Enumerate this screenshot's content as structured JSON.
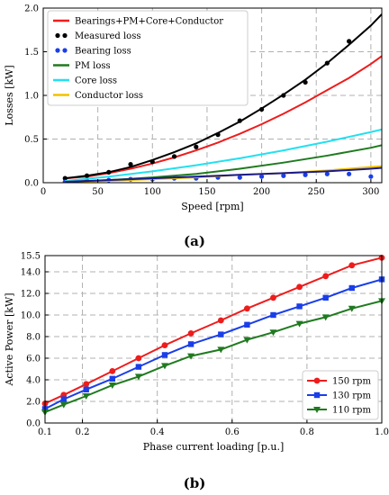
{
  "chart_data": [
    {
      "type": "line",
      "panel_label": "(a)",
      "xlabel": "Speed [rpm]",
      "ylabel": "Losses [kW]",
      "xlim": [
        0,
        310
      ],
      "ylim": [
        0,
        2.0
      ],
      "xticks": [
        0,
        50,
        100,
        150,
        200,
        250,
        300
      ],
      "xtick_labels": [
        "0",
        "50",
        "100",
        "150",
        "200",
        "250",
        "300"
      ],
      "yticks": [
        0,
        0.5,
        1.0,
        1.5,
        2.0
      ],
      "ytick_labels": [
        "0.0",
        "0.5",
        "1.0",
        "1.5",
        "2.0"
      ],
      "grid": true,
      "legend_position": "top-left",
      "series": [
        {
          "name": "Bearings+PM+Core+Conductor",
          "kind": "line",
          "color": "#ee1c1c",
          "x": [
            20,
            40,
            60,
            80,
            100,
            120,
            140,
            160,
            180,
            200,
            220,
            240,
            260,
            280,
            300,
            310
          ],
          "y": [
            0.05,
            0.07,
            0.11,
            0.16,
            0.22,
            0.29,
            0.37,
            0.46,
            0.56,
            0.67,
            0.79,
            0.92,
            1.06,
            1.2,
            1.36,
            1.45
          ]
        },
        {
          "name": "Measured loss",
          "kind": "scatter",
          "color": "#000000",
          "x": [
            20,
            40,
            60,
            80,
            100,
            120,
            140,
            160,
            180,
            200,
            220,
            240,
            260,
            280
          ],
          "y": [
            0.05,
            0.08,
            0.12,
            0.21,
            0.24,
            0.3,
            0.41,
            0.55,
            0.71,
            0.84,
            1.0,
            1.15,
            1.37,
            1.62
          ]
        },
        {
          "name": "Bearing loss",
          "kind": "scatter",
          "color": "#1a3ee8",
          "x": [
            20,
            40,
            60,
            80,
            100,
            120,
            140,
            160,
            180,
            200,
            220,
            240,
            260,
            280,
            300
          ],
          "y": [
            0.01,
            0.02,
            0.03,
            0.04,
            0.04,
            0.05,
            0.05,
            0.06,
            0.06,
            0.07,
            0.08,
            0.09,
            0.1,
            0.1,
            0.07
          ]
        },
        {
          "name": "PM loss",
          "kind": "line",
          "color": "#1f7a1f",
          "x": [
            20,
            60,
            100,
            140,
            180,
            220,
            260,
            300,
            310
          ],
          "y": [
            0.01,
            0.03,
            0.06,
            0.1,
            0.16,
            0.23,
            0.31,
            0.4,
            0.43
          ]
        },
        {
          "name": "Core loss",
          "kind": "line",
          "color": "#22e0f0",
          "x": [
            20,
            60,
            100,
            140,
            180,
            220,
            260,
            300,
            310
          ],
          "y": [
            0.02,
            0.07,
            0.13,
            0.2,
            0.28,
            0.37,
            0.47,
            0.58,
            0.61
          ]
        },
        {
          "name": "Conductor loss",
          "kind": "line",
          "color": "#f2c200",
          "x": [
            20,
            60,
            100,
            140,
            180,
            220,
            260,
            300,
            310
          ],
          "y": [
            0.01,
            0.02,
            0.04,
            0.06,
            0.09,
            0.11,
            0.14,
            0.18,
            0.19
          ]
        },
        {
          "name": "",
          "kind": "line",
          "color": "#1a1a8a",
          "x": [
            20,
            60,
            100,
            140,
            180,
            220,
            260,
            300,
            310
          ],
          "y": [
            0.01,
            0.03,
            0.05,
            0.07,
            0.09,
            0.11,
            0.13,
            0.16,
            0.17
          ]
        },
        {
          "name": "",
          "kind": "line",
          "color": "#000000",
          "x": [
            20,
            40,
            60,
            80,
            100,
            120,
            140,
            160,
            180,
            200,
            220,
            240,
            260,
            280,
            300,
            310
          ],
          "y": [
            0.05,
            0.08,
            0.12,
            0.18,
            0.26,
            0.35,
            0.45,
            0.57,
            0.7,
            0.85,
            1.01,
            1.18,
            1.37,
            1.58,
            1.8,
            1.93
          ]
        }
      ]
    },
    {
      "type": "line",
      "panel_label": "(b)",
      "xlabel": "Phase current loading [p.u.]",
      "ylabel": "Active Power [kW]",
      "xlim": [
        0.1,
        1.0
      ],
      "ylim": [
        0.0,
        15.5
      ],
      "xticks": [
        0.1,
        0.2,
        0.4,
        0.6,
        0.8,
        1.0
      ],
      "xtick_labels": [
        "0.1",
        "0.2",
        "0.4",
        "0.6",
        "0.8",
        "1.0"
      ],
      "yticks": [
        0,
        2,
        4,
        6,
        8,
        10,
        12,
        14,
        15.5
      ],
      "ytick_labels": [
        "0.0",
        "2.0",
        "4.0",
        "6.0",
        "8.0",
        "10.0",
        "12.0",
        "14.0",
        "15.5"
      ],
      "grid": true,
      "legend_position": "bottom-right",
      "series": [
        {
          "name": "150 rpm",
          "marker": "circle",
          "color": "#ee1c1c",
          "x": [
            0.1,
            0.15,
            0.21,
            0.28,
            0.35,
            0.42,
            0.49,
            0.57,
            0.64,
            0.71,
            0.78,
            0.85,
            0.92,
            1.0
          ],
          "y": [
            1.8,
            2.6,
            3.6,
            4.8,
            6.0,
            7.2,
            8.3,
            9.5,
            10.6,
            11.6,
            12.6,
            13.6,
            14.6,
            15.3
          ]
        },
        {
          "name": "130 rpm",
          "marker": "square",
          "color": "#1a3ee8",
          "x": [
            0.1,
            0.15,
            0.21,
            0.28,
            0.35,
            0.42,
            0.49,
            0.57,
            0.64,
            0.71,
            0.78,
            0.85,
            0.92,
            1.0
          ],
          "y": [
            1.3,
            2.2,
            3.1,
            4.1,
            5.2,
            6.3,
            7.3,
            8.2,
            9.1,
            10.0,
            10.8,
            11.6,
            12.5,
            13.3
          ]
        },
        {
          "name": "110 rpm",
          "marker": "triangle-down",
          "color": "#1f7a1f",
          "x": [
            0.1,
            0.15,
            0.21,
            0.28,
            0.35,
            0.42,
            0.49,
            0.57,
            0.64,
            0.71,
            0.78,
            0.85,
            0.92,
            1.0
          ],
          "y": [
            1.0,
            1.7,
            2.5,
            3.5,
            4.3,
            5.3,
            6.2,
            6.8,
            7.7,
            8.4,
            9.2,
            9.8,
            10.6,
            11.3
          ]
        }
      ]
    }
  ]
}
